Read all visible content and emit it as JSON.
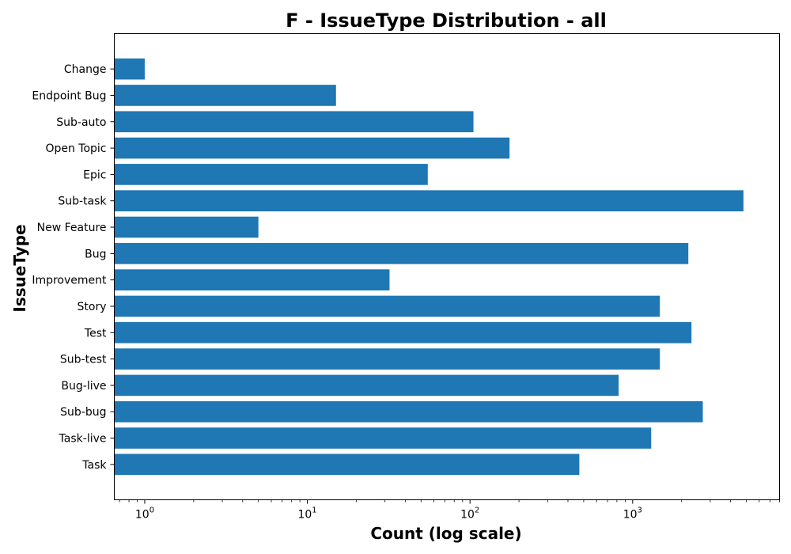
{
  "chart_data": {
    "type": "bar",
    "orientation": "horizontal",
    "title": "F - IssueType Distribution - all",
    "xlabel": "Count (log scale)",
    "ylabel": "IssueType",
    "x_scale": "log",
    "xlim": [
      0.65,
      8000
    ],
    "x_ticks": [
      {
        "value": 1,
        "base": "10",
        "exp": "0"
      },
      {
        "value": 10,
        "base": "10",
        "exp": "1"
      },
      {
        "value": 100,
        "base": "10",
        "exp": "2"
      },
      {
        "value": 1000,
        "base": "10",
        "exp": "3"
      }
    ],
    "categories": [
      "Change",
      "Endpoint Bug",
      "Sub-auto",
      "Open Topic",
      "Epic",
      "Sub-task",
      "New Feature",
      "Bug",
      "Improvement",
      "Story",
      "Test",
      "Sub-test",
      "Bug-live",
      "Sub-bug",
      "Task-live",
      "Task"
    ],
    "values": [
      1,
      15,
      105,
      175,
      55,
      4800,
      5,
      2200,
      32,
      1470,
      2300,
      1470,
      820,
      2700,
      1300,
      470
    ],
    "grid": false,
    "legend": null
  },
  "colors": {
    "bar": "#1f77b4",
    "axis": "#000000",
    "background": "#ffffff"
  }
}
